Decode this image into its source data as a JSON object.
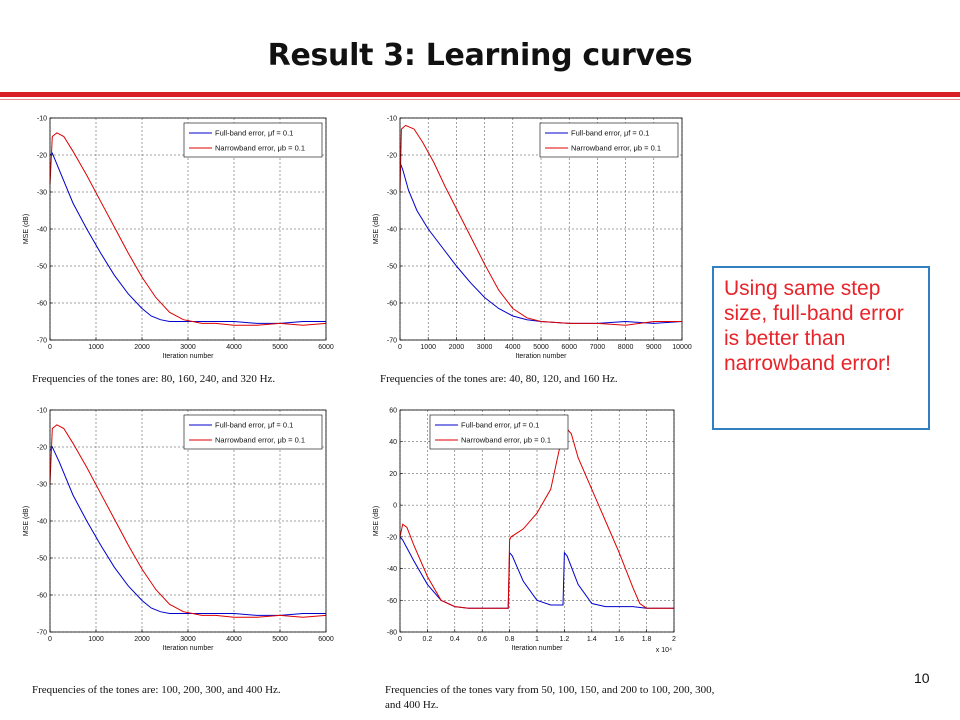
{
  "slide": {
    "title": "Result 3: Learning curves",
    "callout": "Using same step size, full-band error is better than narrowband error!",
    "page_number": "10",
    "colors": {
      "accent_rule": "#d91f26",
      "callout_border": "#2f7fc1",
      "callout_text": "#e8242a"
    }
  },
  "captions": [
    "Frequencies of the tones are: 80, 160, 240, and 320 Hz.",
    "Frequencies of the tones are: 40, 80, 120, and 160 Hz.",
    "Frequencies of the tones are: 100, 200, 300, and 400 Hz.",
    "Frequencies of the tones vary from 50, 100, 150, and 200 to 100, 200, 300, and 400 Hz."
  ],
  "chart_data": [
    {
      "type": "line",
      "xlabel": "Iteration number",
      "ylabel": "MSE (dB)",
      "xlim": [
        0,
        6000
      ],
      "ylim": [
        -70,
        -10
      ],
      "xticks": [
        0,
        1000,
        2000,
        3000,
        4000,
        5000,
        6000
      ],
      "yticks": [
        -70,
        -60,
        -50,
        -40,
        -30,
        -20,
        -10
      ],
      "grid": true,
      "legend_position": "top-right",
      "series": [
        {
          "name": "Full-band error, μf = 0.1",
          "color": "#0000cc",
          "x": [
            0,
            50,
            200,
            500,
            800,
            1100,
            1400,
            1700,
            2000,
            2200,
            2400,
            2600,
            2800,
            3000,
            3500,
            4000,
            4500,
            5000,
            5500,
            6000
          ],
          "y": [
            -20,
            -19.5,
            -24,
            -33,
            -40,
            -46.5,
            -52.5,
            -57.5,
            -61.5,
            -63.5,
            -64.5,
            -65,
            -65,
            -65,
            -65,
            -65,
            -65.5,
            -65.5,
            -65,
            -65
          ]
        },
        {
          "name": "Narrowband error, μb = 0.1",
          "color": "#dd0000",
          "x": [
            0,
            50,
            150,
            300,
            500,
            800,
            1100,
            1400,
            1700,
            2000,
            2300,
            2600,
            2900,
            3100,
            3300,
            3600,
            4000,
            4500,
            5000,
            5500,
            6000
          ],
          "y": [
            -28,
            -15,
            -14,
            -15,
            -19,
            -25.5,
            -32.5,
            -39.5,
            -46.5,
            -53,
            -58.5,
            -62.5,
            -64.5,
            -65,
            -65.5,
            -65.5,
            -66,
            -66,
            -65.5,
            -66,
            -65.5
          ]
        }
      ]
    },
    {
      "type": "line",
      "xlabel": "Iteration number",
      "ylabel": "MSE (dB)",
      "xlim": [
        0,
        10000
      ],
      "ylim": [
        -70,
        -10
      ],
      "xticks": [
        0,
        1000,
        2000,
        3000,
        4000,
        5000,
        6000,
        7000,
        8000,
        9000,
        10000
      ],
      "yticks": [
        -70,
        -60,
        -50,
        -40,
        -30,
        -20,
        -10
      ],
      "grid": true,
      "legend_position": "top-right",
      "series": [
        {
          "name": "Full-band error, μf = 0.1",
          "color": "#0000cc",
          "x": [
            0,
            100,
            300,
            600,
            1000,
            1500,
            2000,
            2500,
            3000,
            3500,
            4000,
            4500,
            5000,
            6000,
            7000,
            8000,
            9000,
            10000
          ],
          "y": [
            -22,
            -24,
            -29.5,
            -35,
            -40,
            -45,
            -50,
            -54.5,
            -58.5,
            -61.5,
            -63.5,
            -64.5,
            -65,
            -65.5,
            -65.5,
            -65,
            -65.5,
            -65
          ]
        },
        {
          "name": "Narrowband error, μb = 0.1",
          "color": "#dd0000",
          "x": [
            0,
            50,
            200,
            500,
            800,
            1200,
            1600,
            2000,
            2500,
            3000,
            3500,
            4000,
            4500,
            5000,
            6000,
            7000,
            8000,
            9000,
            10000
          ],
          "y": [
            -30,
            -13,
            -12,
            -13,
            -16.5,
            -22,
            -28.5,
            -34.5,
            -42,
            -49.5,
            -56.5,
            -61.5,
            -64,
            -65,
            -65.5,
            -65.5,
            -66,
            -65,
            -65
          ]
        }
      ]
    },
    {
      "type": "line",
      "xlabel": "Iteration number",
      "ylabel": "MSE (dB)",
      "xlim": [
        0,
        6000
      ],
      "ylim": [
        -70,
        -10
      ],
      "xticks": [
        0,
        1000,
        2000,
        3000,
        4000,
        5000,
        6000
      ],
      "yticks": [
        -70,
        -60,
        -50,
        -40,
        -30,
        -20,
        -10
      ],
      "grid": true,
      "legend_position": "top-right",
      "series": [
        {
          "name": "Full-band error, μf = 0.1",
          "color": "#0000cc",
          "x": [
            0,
            50,
            200,
            500,
            800,
            1100,
            1400,
            1700,
            2000,
            2200,
            2400,
            2600,
            2800,
            3000,
            3500,
            4000,
            4500,
            5000,
            5500,
            6000
          ],
          "y": [
            -21,
            -20,
            -24,
            -33,
            -40,
            -46.5,
            -52.5,
            -57.5,
            -61.5,
            -63.5,
            -64.5,
            -65,
            -65,
            -65,
            -65,
            -65,
            -65.5,
            -65.5,
            -65,
            -65
          ]
        },
        {
          "name": "Narrowband error, μb = 0.1",
          "color": "#dd0000",
          "x": [
            0,
            50,
            150,
            300,
            500,
            800,
            1100,
            1400,
            1700,
            2000,
            2300,
            2600,
            2900,
            3100,
            3300,
            3600,
            4000,
            4500,
            5000,
            5500,
            6000
          ],
          "y": [
            -30,
            -15,
            -14,
            -15,
            -19,
            -25.5,
            -32.5,
            -39.5,
            -46.5,
            -53,
            -58.5,
            -62.5,
            -64.5,
            -65,
            -65.5,
            -65.5,
            -66,
            -66,
            -65.5,
            -66,
            -65.5
          ]
        }
      ]
    },
    {
      "type": "line",
      "xlabel": "Iteration number",
      "ylabel": "MSE (dB)",
      "xlim": [
        0,
        2
      ],
      "ylim": [
        -80,
        60
      ],
      "xticks": [
        0,
        0.2,
        0.4,
        0.6,
        0.8,
        1,
        1.2,
        1.4,
        1.6,
        1.8,
        2
      ],
      "x_multiplier": "x 10⁴",
      "yticks": [
        -80,
        -60,
        -40,
        -20,
        0,
        20,
        40,
        60
      ],
      "grid": true,
      "legend_position": "top-left",
      "series": [
        {
          "name": "Full-band error, μf = 0.1",
          "color": "#0000cc",
          "x": [
            0,
            0.02,
            0.1,
            0.2,
            0.3,
            0.4,
            0.5,
            0.6,
            0.7,
            0.79,
            0.8,
            0.82,
            0.9,
            1.0,
            1.1,
            1.19,
            1.2,
            1.22,
            1.3,
            1.4,
            1.5,
            1.6,
            1.7,
            1.8,
            1.9,
            2.0
          ],
          "y": [
            -20,
            -22,
            -35,
            -50,
            -60,
            -64,
            -65,
            -65,
            -65,
            -65,
            -30,
            -32,
            -48,
            -60,
            -63,
            -63,
            -30,
            -32,
            -50,
            -62,
            -64,
            -64,
            -64,
            -65,
            -65,
            -65
          ]
        },
        {
          "name": "Narrowband error, μb = 0.1",
          "color": "#dd0000",
          "x": [
            0,
            0.02,
            0.05,
            0.1,
            0.2,
            0.3,
            0.4,
            0.5,
            0.6,
            0.7,
            0.79,
            0.8,
            0.81,
            0.9,
            1.0,
            1.1,
            1.2,
            1.25,
            1.3,
            1.4,
            1.5,
            1.6,
            1.7,
            1.75,
            1.8,
            1.9,
            2.0
          ],
          "y": [
            -20,
            -12,
            -14,
            -25,
            -45,
            -60,
            -64,
            -65,
            -65,
            -65,
            -65,
            -22,
            -20,
            -15,
            -5,
            10,
            50,
            45,
            30,
            10,
            -10,
            -30,
            -52,
            -62,
            -65,
            -65,
            -65
          ]
        }
      ]
    }
  ]
}
